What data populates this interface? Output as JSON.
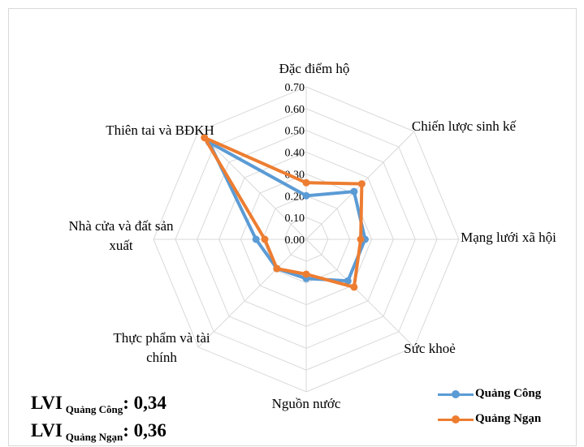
{
  "chart_data": {
    "type": "radar",
    "categories": [
      "Đặc điểm hộ",
      "Chiến lược sinh kế",
      "Mạng lưới xã hội",
      "Sức khoẻ",
      "Nguồn nước",
      "Thực phẩm và tài chính",
      "Nhà cửa và đất sản xuất",
      "Thiên tai và BĐKH"
    ],
    "category_lines": [
      [
        "Đặc điểm hộ"
      ],
      [
        "Chiến lược sinh kế"
      ],
      [
        "Mạng lưới xã hội"
      ],
      [
        "Sức khoẻ"
      ],
      [
        "Nguồn nước"
      ],
      [
        "Thực phẩm và tài",
        "chính"
      ],
      [
        "Nhà cửa và đất sản",
        "xuất"
      ],
      [
        "Thiên tai và BĐKH"
      ]
    ],
    "ticks": [
      "0.00",
      "0.10",
      "0.20",
      "0.30",
      "0.40",
      "0.50",
      "0.60",
      "0.70"
    ],
    "rmax": 0.7,
    "grid": true,
    "legend_position": "bottom-right",
    "series": [
      {
        "name": "Quảng Công",
        "color": "#5b9bd5",
        "values": [
          0.2,
          0.31,
          0.27,
          0.27,
          0.18,
          0.19,
          0.23,
          0.63
        ]
      },
      {
        "name": "Quảng Ngạn",
        "color": "#ed7d31",
        "values": [
          0.26,
          0.36,
          0.25,
          0.31,
          0.16,
          0.19,
          0.19,
          0.66
        ]
      }
    ]
  },
  "lvi": [
    {
      "prefix": "LVI",
      "place": "Quảng Công",
      "value": ": 0,34"
    },
    {
      "prefix": "LVI",
      "place": "Quảng Ngạn",
      "value": ": 0,36"
    }
  ]
}
